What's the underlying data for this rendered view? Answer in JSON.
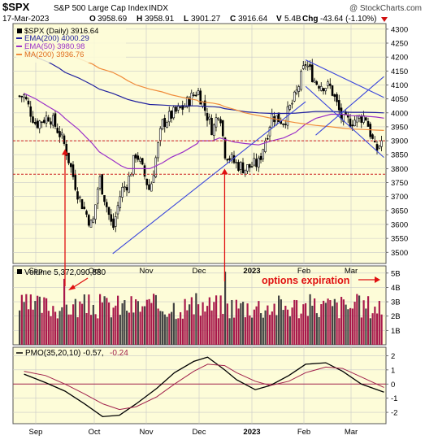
{
  "header": {
    "symbol": "$SPX",
    "name": "S&P 500 Large Cap Index",
    "exchange": "INDX",
    "watermark": "@ StockCharts.com",
    "date": "17-Mar-2023",
    "open_label": "O",
    "open": "3958.69",
    "high_label": "H",
    "high": "3958.91",
    "low_label": "L",
    "low": "3901.27",
    "close_label": "C",
    "close": "3916.64",
    "volume_label": "V",
    "volume": "5.4B",
    "change_label": "Chg",
    "change": "-43.64 (-1.10%)"
  },
  "colors": {
    "panel_bg": "#fdfcd8",
    "grid": "#c8c8c8",
    "candle": "#000000",
    "ema200": "#1f1f9e",
    "ema50": "#9b30c8",
    "ma200": "#f08c3c",
    "trendline": "#3a46dc",
    "support": "#cc2020",
    "arrow": "#e01010",
    "volume_bar": "#a8194b",
    "volume_bar_down": "#444444",
    "pmo": "#000000",
    "pmo_signal": "#a0204b",
    "zero_line": "#a0204b",
    "annotation": "#e01010"
  },
  "price_legend": {
    "series_label": "$SPX (Daily) 3916.64",
    "ema200": "EMA(200) 4000.29",
    "ema50": "EMA(50) 3980.98",
    "ma200": "MA(200) 3936.76"
  },
  "volume_legend": "Volume 5,372,090,880",
  "pmo_legend_black": "PMO(35,20,10) -0.57,",
  "pmo_legend_red": "-0.24",
  "annotation": "options expiration",
  "x_tick_labels": [
    "Sep",
    "Oct",
    "Nov",
    "Dec",
    "2023",
    "Feb",
    "Mar"
  ],
  "chart_data": [
    {
      "type": "line",
      "panel": "price",
      "ylim": [
        3460,
        4320
      ],
      "yticks": [
        3500,
        3550,
        3600,
        3650,
        3700,
        3750,
        3800,
        3850,
        3900,
        3950,
        4000,
        4050,
        4100,
        4150,
        4200,
        4250,
        4300
      ],
      "x": [
        "Aug 26",
        "Sep 1",
        "Sep 8",
        "Sep 13",
        "Sep 16",
        "Sep 23",
        "Sep 30",
        "Oct 4",
        "Oct 12",
        "Oct 17",
        "Oct 21",
        "Oct 26",
        "Nov 3",
        "Nov 10",
        "Nov 15",
        "Nov 22",
        "Nov 30",
        "Dec 1",
        "Dec 9",
        "Dec 13",
        "Dec 16",
        "Dec 22",
        "Dec 28",
        "Jan 5",
        "Jan 13",
        "Jan 20",
        "Jan 27",
        "Feb 2",
        "Feb 8",
        "Feb 17",
        "Feb 24",
        "Mar 1",
        "Mar 8",
        "Mar 13",
        "Mar 17"
      ],
      "series": [
        {
          "name": "$SPX (Daily)",
          "values": [
            4060,
            3960,
            3990,
            3930,
            3880,
            3700,
            3590,
            3770,
            3580,
            3720,
            3750,
            3860,
            3720,
            3960,
            3990,
            4020,
            4080,
            4070,
            3935,
            4020,
            3860,
            3820,
            3800,
            3820,
            3990,
            3970,
            4060,
            4180,
            4110,
            4090,
            3970,
            3970,
            3990,
            3860,
            3916
          ]
        },
        {
          "name": "EMA(200)",
          "values": [
            4230,
            4200,
            4180,
            4160,
            4145,
            4125,
            4100,
            4085,
            4070,
            4058,
            4048,
            4040,
            4030,
            4028,
            4026,
            4025,
            4025,
            4024,
            4022,
            4020,
            4015,
            4010,
            4004,
            4000,
            3998,
            3998,
            3999,
            4002,
            4005,
            4005,
            4003,
            4002,
            4002,
            4001,
            4000
          ]
        },
        {
          "name": "EMA(50)",
          "values": [
            4070,
            4050,
            4020,
            4000,
            3980,
            3940,
            3890,
            3860,
            3830,
            3810,
            3800,
            3800,
            3800,
            3820,
            3840,
            3860,
            3890,
            3900,
            3900,
            3910,
            3905,
            3895,
            3890,
            3885,
            3900,
            3910,
            3930,
            3960,
            3980,
            3995,
            3995,
            3990,
            3988,
            3985,
            3981
          ]
        },
        {
          "name": "MA(200)",
          "values": [
            4300,
            4270,
            4250,
            4230,
            4215,
            4195,
            4175,
            4160,
            4145,
            4130,
            4115,
            4100,
            4085,
            4075,
            4065,
            4055,
            4045,
            4040,
            4035,
            4030,
            4022,
            4012,
            4000,
            3990,
            3980,
            3972,
            3965,
            3960,
            3955,
            3950,
            3945,
            3942,
            3940,
            3938,
            3937
          ]
        }
      ],
      "horizontal_lines": [
        3900,
        3780
      ],
      "trendlines": [
        {
          "from": [
            "Oct 12",
            3495
          ],
          "to": [
            "Feb 2",
            4040
          ]
        },
        {
          "from": [
            "Feb 2",
            4190
          ],
          "to": [
            "Mar 17",
            4055
          ]
        },
        {
          "from": [
            "Feb 2",
            4095
          ],
          "to": [
            "Mar 17",
            3840
          ]
        },
        {
          "from": [
            "Feb 8",
            3920
          ],
          "to": [
            "Mar 17",
            4130
          ]
        }
      ]
    },
    {
      "type": "bar",
      "panel": "volume",
      "ylim": [
        0,
        5.5
      ],
      "yticks": [
        "1B",
        "2B",
        "3B",
        "4B",
        "5B"
      ],
      "tick_values": [
        1,
        2,
        3,
        4,
        5
      ],
      "units": "billions of shares",
      "spike_values": [
        {
          "x": "Sep 16",
          "value": 4.6
        },
        {
          "x": "Dec 16",
          "value": 5.1
        },
        {
          "x": "Mar 17",
          "value": 5.4
        }
      ],
      "typical_range": [
        1.8,
        3.6
      ]
    },
    {
      "type": "line",
      "panel": "pmo",
      "ylim": [
        -2.8,
        2.6
      ],
      "yticks": [
        -2,
        -1,
        0,
        1,
        2
      ],
      "x": [
        "Aug 26",
        "Sep 6",
        "Sep 16",
        "Sep 26",
        "Oct 6",
        "Oct 16",
        "Oct 26",
        "Nov 7",
        "Nov 17",
        "Nov 28",
        "Dec 6",
        "Dec 16",
        "Dec 23",
        "Jan 3",
        "Jan 12",
        "Jan 23",
        "Feb 2",
        "Feb 14",
        "Feb 24",
        "Mar 6",
        "Mar 17"
      ],
      "series": [
        {
          "name": "PMO",
          "values": [
            0.7,
            0.1,
            -0.5,
            -1.4,
            -2.3,
            -2.2,
            -1.4,
            -0.3,
            0.8,
            1.6,
            1.9,
            1.0,
            0.3,
            -0.4,
            -0.1,
            0.6,
            1.4,
            1.5,
            0.9,
            0.0,
            -0.57
          ]
        },
        {
          "name": "Signal",
          "values": [
            0.9,
            0.6,
            0.0,
            -0.7,
            -1.4,
            -1.8,
            -1.6,
            -0.9,
            0.0,
            0.9,
            1.4,
            1.3,
            0.8,
            0.2,
            -0.1,
            0.2,
            0.8,
            1.2,
            1.1,
            0.5,
            -0.24
          ]
        }
      ]
    }
  ]
}
